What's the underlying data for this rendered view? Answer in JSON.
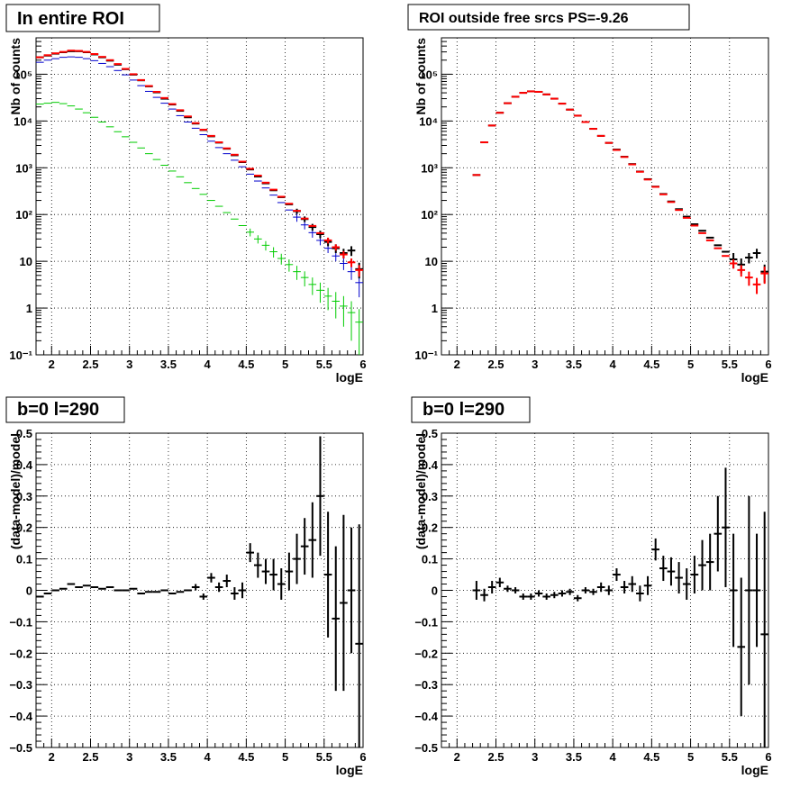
{
  "colors": {
    "data": "#000000",
    "total_model": "#ff0000",
    "model_blue": "#0000cc",
    "model_green": "#00cc00",
    "grid": "#000000"
  },
  "chart_data": [
    {
      "type": "scatter",
      "title": "In entire ROI",
      "xlabel": "logE",
      "ylabel": "Nb of counts",
      "xlim": [
        1.8,
        6.0
      ],
      "ylim": [
        0.1,
        600000
      ],
      "yscale": "log",
      "grid": true,
      "xticks": [
        "2",
        "2.5",
        "3",
        "3.5",
        "4",
        "4.5",
        "5",
        "5.5",
        "6"
      ],
      "yticks": [
        "10⁻¹",
        "1",
        "10",
        "10²",
        "10³",
        "10⁴",
        "10⁵"
      ],
      "x": [
        1.85,
        1.95,
        2.05,
        2.15,
        2.25,
        2.35,
        2.45,
        2.55,
        2.65,
        2.75,
        2.85,
        2.95,
        3.05,
        3.15,
        3.25,
        3.35,
        3.45,
        3.55,
        3.65,
        3.75,
        3.85,
        3.95,
        4.05,
        4.15,
        4.25,
        4.35,
        4.45,
        4.55,
        4.65,
        4.75,
        4.85,
        4.95,
        5.05,
        5.15,
        5.25,
        5.35,
        5.45,
        5.55,
        5.65,
        5.75,
        5.85,
        5.95
      ],
      "series": [
        {
          "key": "red",
          "values": [
            230000,
            255000,
            280000,
            300000,
            320000,
            315000,
            300000,
            270000,
            235000,
            200000,
            165000,
            130000,
            100000,
            75000,
            56000,
            42000,
            31000,
            23000,
            17000,
            12500,
            9000,
            6500,
            4800,
            3500,
            2600,
            1900,
            1350,
            950,
            680,
            480,
            340,
            240,
            170,
            120,
            82,
            57,
            40,
            28,
            20,
            14,
            9.5,
            6.5
          ],
          "errors": [
            0,
            0,
            0,
            0,
            0,
            0,
            0,
            0,
            0,
            0,
            0,
            0,
            0,
            0,
            0,
            0,
            0,
            0,
            0,
            0,
            0,
            0,
            0,
            0,
            0,
            0,
            0,
            0,
            0,
            0,
            0,
            0,
            0,
            0,
            0,
            0,
            0,
            4,
            3,
            2.5,
            2,
            1.8
          ]
        },
        {
          "key": "black",
          "values": [
            230000,
            250000,
            275000,
            295000,
            310000,
            310000,
            295000,
            265000,
            230000,
            195000,
            160000,
            128000,
            98000,
            74000,
            55000,
            41000,
            30000,
            22500,
            16500,
            12000,
            8800,
            6400,
            4700,
            3450,
            2550,
            1850,
            1320,
            920,
            650,
            465,
            330,
            235,
            165,
            118,
            80,
            54,
            38,
            26,
            19,
            15,
            17,
            6.8
          ],
          "errors": [
            0,
            0,
            0,
            0,
            0,
            0,
            0,
            0,
            0,
            0,
            0,
            0,
            0,
            0,
            0,
            0,
            0,
            0,
            0,
            0,
            0,
            0,
            0,
            0,
            0,
            0,
            0,
            0,
            0,
            0,
            0,
            0,
            0,
            15,
            11,
            9,
            7,
            5,
            4,
            3.5,
            4,
            2.5
          ]
        },
        {
          "key": "blue",
          "values": [
            180000,
            200000,
            215000,
            230000,
            235000,
            230000,
            215000,
            195000,
            170000,
            145000,
            120000,
            97000,
            75000,
            57000,
            43000,
            32000,
            24000,
            18000,
            13000,
            9500,
            7000,
            5100,
            3700,
            2700,
            2000,
            1450,
            1050,
            730,
            520,
            370,
            260,
            180,
            125,
            88,
            60,
            41,
            28,
            19,
            13,
            9,
            6,
            3.5
          ],
          "errors": [
            0,
            0,
            0,
            0,
            0,
            0,
            0,
            0,
            0,
            0,
            0,
            0,
            0,
            0,
            0,
            0,
            0,
            0,
            0,
            0,
            0,
            0,
            0,
            0,
            0,
            0,
            0,
            0,
            0,
            0,
            0,
            0,
            0,
            18,
            12,
            9,
            6,
            4,
            3,
            2.5,
            2,
            1.8
          ]
        },
        {
          "key": "green",
          "values": [
            23000,
            24000,
            25000,
            23500,
            21000,
            18000,
            15000,
            12000,
            9500,
            7500,
            5900,
            4600,
            3500,
            2650,
            2000,
            1500,
            1130,
            850,
            640,
            480,
            360,
            270,
            200,
            150,
            110,
            80,
            58,
            42,
            30,
            22,
            16,
            11.5,
            8.5,
            6,
            4.5,
            3.2,
            2.4,
            1.8,
            1.4,
            1.1,
            0.8,
            0.5
          ],
          "errors": [
            0,
            0,
            0,
            0,
            0,
            0,
            0,
            0,
            0,
            0,
            0,
            0,
            0,
            0,
            0,
            0,
            0,
            0,
            0,
            0,
            0,
            0,
            0,
            0,
            0,
            0,
            0,
            8,
            6,
            5,
            4,
            3,
            2.5,
            2,
            1.6,
            1.3,
            1.1,
            0.9,
            0.8,
            0.7,
            0.6,
            0.45
          ]
        }
      ]
    },
    {
      "type": "scatter",
      "title": "ROI outside free srcs PS=-9.26",
      "xlabel": "logE",
      "ylabel": "Nb of counts",
      "xlim": [
        1.8,
        6.0
      ],
      "ylim": [
        0.1,
        600000
      ],
      "yscale": "log",
      "grid": true,
      "xticks": [
        "2",
        "2.5",
        "3",
        "3.5",
        "4",
        "4.5",
        "5",
        "5.5",
        "6"
      ],
      "yticks": [
        "10⁻¹",
        "1",
        "10",
        "10²",
        "10³",
        "10⁴",
        "10⁵"
      ],
      "x": [
        2.25,
        2.35,
        2.45,
        2.55,
        2.65,
        2.75,
        2.85,
        2.95,
        3.05,
        3.15,
        3.25,
        3.35,
        3.45,
        3.55,
        3.65,
        3.75,
        3.85,
        3.95,
        4.05,
        4.15,
        4.25,
        4.35,
        4.45,
        4.55,
        4.65,
        4.75,
        4.85,
        4.95,
        5.05,
        5.15,
        5.25,
        5.35,
        5.45,
        5.55,
        5.65,
        5.75,
        5.85,
        5.95
      ],
      "series": [
        {
          "key": "red",
          "values": [
            700,
            3500,
            8000,
            15000,
            24000,
            33000,
            40000,
            43000,
            42000,
            37000,
            30000,
            23500,
            17500,
            13000,
            9500,
            6800,
            4800,
            3400,
            2400,
            1700,
            1180,
            820,
            560,
            390,
            270,
            185,
            125,
            85,
            58,
            40,
            28,
            19,
            13,
            9,
            6.5,
            4.5,
            3.2,
            5.5
          ],
          "errors": [
            0,
            0,
            0,
            0,
            0,
            0,
            0,
            0,
            0,
            0,
            0,
            0,
            0,
            0,
            0,
            0,
            0,
            0,
            0,
            0,
            0,
            0,
            0,
            0,
            0,
            0,
            0,
            0,
            0,
            0,
            0,
            0,
            0,
            2,
            1.8,
            1.5,
            1.2,
            2.2
          ]
        },
        {
          "key": "black",
          "values": [
            700,
            3500,
            8000,
            15000,
            24000,
            33000,
            40000,
            43000,
            42000,
            37000,
            30000,
            23500,
            17500,
            13000,
            9500,
            6800,
            4800,
            3400,
            2450,
            1720,
            1200,
            830,
            570,
            395,
            275,
            190,
            130,
            90,
            62,
            45,
            32,
            22,
            16,
            11,
            8.5,
            12,
            15,
            6
          ],
          "errors": [
            0,
            0,
            0,
            0,
            0,
            0,
            0,
            0,
            0,
            0,
            0,
            0,
            0,
            0,
            0,
            0,
            0,
            0,
            0,
            0,
            0,
            0,
            0,
            0,
            0,
            0,
            0,
            0,
            0,
            0,
            0,
            0,
            0,
            4,
            3,
            3,
            3.5,
            2.5
          ]
        }
      ]
    },
    {
      "type": "scatter",
      "title": "b=0 l=290",
      "xlabel": "logE",
      "ylabel": "(data-model)/model",
      "xlim": [
        1.8,
        6.0
      ],
      "ylim": [
        -0.5,
        0.5
      ],
      "grid": true,
      "xticks": [
        "2",
        "2.5",
        "3",
        "3.5",
        "4",
        "4.5",
        "5",
        "5.5",
        "6"
      ],
      "yticks": [
        "−0.5",
        "−0.4",
        "−0.3",
        "−0.2",
        "−0.1",
        "0",
        "0.1",
        "0.2",
        "0.3",
        "0.4",
        "0.5"
      ],
      "x": [
        1.85,
        1.95,
        2.05,
        2.15,
        2.25,
        2.35,
        2.45,
        2.55,
        2.65,
        2.75,
        2.85,
        2.95,
        3.05,
        3.15,
        3.25,
        3.35,
        3.45,
        3.55,
        3.65,
        3.75,
        3.85,
        3.95,
        4.05,
        4.15,
        4.25,
        4.35,
        4.45,
        4.55,
        4.65,
        4.75,
        4.85,
        4.95,
        5.05,
        5.15,
        5.25,
        5.35,
        5.45,
        5.55,
        5.65,
        5.75,
        5.85,
        5.95
      ],
      "series": [
        {
          "key": "black",
          "values": [
            -0.02,
            -0.01,
            0.0,
            0.005,
            0.02,
            0.01,
            0.015,
            0.01,
            0.005,
            0.01,
            0.0,
            0.0,
            0.005,
            -0.01,
            -0.005,
            -0.005,
            0.0,
            -0.01,
            -0.005,
            0.0,
            0.01,
            -0.02,
            0.04,
            0.01,
            0.03,
            -0.01,
            0.0,
            0.12,
            0.08,
            0.06,
            0.05,
            0.02,
            0.06,
            0.1,
            0.14,
            0.16,
            0.3,
            0.05,
            -0.09,
            -0.04,
            0.0,
            -0.17
          ],
          "errors": [
            0,
            0,
            0,
            0,
            0,
            0,
            0,
            0,
            0,
            0,
            0,
            0,
            0,
            0,
            0,
            0,
            0,
            0,
            0,
            0,
            0.01,
            0.01,
            0.015,
            0.015,
            0.02,
            0.02,
            0.025,
            0.03,
            0.04,
            0.04,
            0.05,
            0.05,
            0.06,
            0.08,
            0.09,
            0.12,
            0.19,
            0.2,
            0.23,
            0.28,
            0.2,
            0.38
          ]
        }
      ]
    },
    {
      "type": "scatter",
      "title": "b=0 l=290",
      "xlabel": "logE",
      "ylabel": "(data-model)/model",
      "xlim": [
        1.8,
        6.0
      ],
      "ylim": [
        -0.5,
        0.5
      ],
      "grid": true,
      "xticks": [
        "2",
        "2.5",
        "3",
        "3.5",
        "4",
        "4.5",
        "5",
        "5.5",
        "6"
      ],
      "yticks": [
        "−0.5",
        "−0.4",
        "−0.3",
        "−0.2",
        "−0.1",
        "0",
        "0.1",
        "0.2",
        "0.3",
        "0.4",
        "0.5"
      ],
      "x": [
        2.25,
        2.35,
        2.45,
        2.55,
        2.65,
        2.75,
        2.85,
        2.95,
        3.05,
        3.15,
        3.25,
        3.35,
        3.45,
        3.55,
        3.65,
        3.75,
        3.85,
        3.95,
        4.05,
        4.15,
        4.25,
        4.35,
        4.45,
        4.55,
        4.65,
        4.75,
        4.85,
        4.95,
        5.05,
        5.15,
        5.25,
        5.35,
        5.45,
        5.55,
        5.65,
        5.75,
        5.85,
        5.95
      ],
      "series": [
        {
          "key": "black",
          "values": [
            0.0,
            -0.015,
            0.01,
            0.025,
            0.005,
            0.0,
            -0.02,
            -0.02,
            -0.01,
            -0.02,
            -0.015,
            -0.01,
            -0.005,
            -0.025,
            0.0,
            -0.005,
            0.01,
            0.0,
            0.05,
            0.01,
            0.02,
            -0.01,
            0.015,
            0.13,
            0.07,
            0.06,
            0.04,
            0.02,
            0.05,
            0.08,
            0.09,
            0.18,
            0.2,
            0.0,
            -0.18,
            0.0,
            0.0,
            -0.14
          ],
          "errors": [
            0.03,
            0.02,
            0.02,
            0.015,
            0.01,
            0.01,
            0.01,
            0.01,
            0.01,
            0.01,
            0.01,
            0.01,
            0.01,
            0.01,
            0.01,
            0.01,
            0.015,
            0.015,
            0.02,
            0.02,
            0.025,
            0.025,
            0.03,
            0.035,
            0.04,
            0.045,
            0.05,
            0.05,
            0.06,
            0.08,
            0.09,
            0.12,
            0.19,
            0.18,
            0.22,
            0.3,
            0.18,
            0.39
          ]
        }
      ]
    }
  ]
}
